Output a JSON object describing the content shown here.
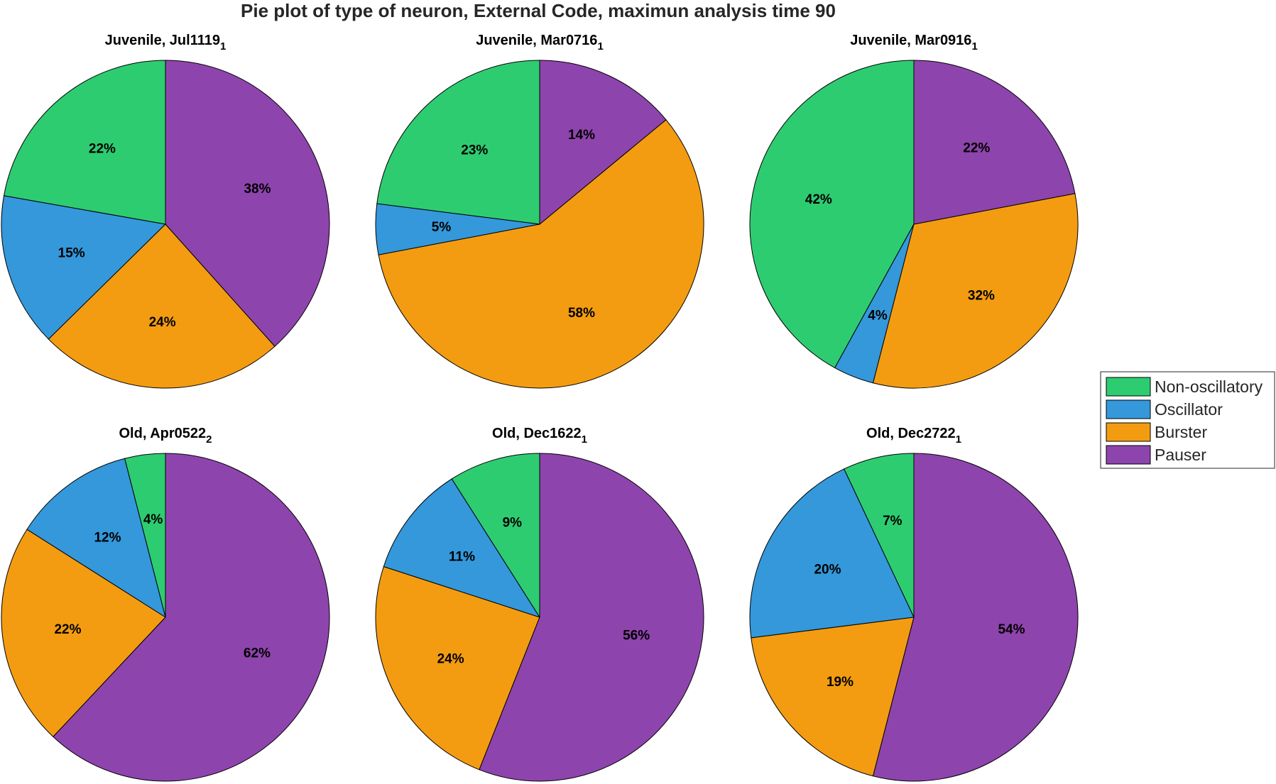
{
  "chart_data": {
    "type": "pie",
    "title": "Pie plot of type of neuron, External Code, maximun analysis time 90",
    "legend": {
      "placement": "right",
      "entries": [
        "Non-oscillatory",
        "Oscillator",
        "Burster",
        "Pauser"
      ]
    },
    "colors": [
      "#2ecc71",
      "#3498db",
      "#f39c12",
      "#8e44ad"
    ],
    "pies": [
      {
        "title": "Juvenile, Jul1119",
        "subscript": "1",
        "values": [
          22,
          15,
          24,
          38
        ],
        "labels": [
          "22%",
          "15%",
          "24%",
          "38%"
        ]
      },
      {
        "title": "Juvenile, Mar0716",
        "subscript": "1",
        "values": [
          23,
          5,
          58,
          14
        ],
        "labels": [
          "23%",
          "5%",
          "58%",
          "14%"
        ]
      },
      {
        "title": "Juvenile, Mar0916",
        "subscript": "1",
        "values": [
          42,
          4,
          32,
          22
        ],
        "labels": [
          "42%",
          "4%",
          "32%",
          "22%"
        ]
      },
      {
        "title": "Old, Apr0522",
        "subscript": "2",
        "values": [
          4,
          12,
          22,
          62
        ],
        "labels": [
          "4%",
          "12%",
          "22%",
          "62%"
        ]
      },
      {
        "title": "Old, Dec1622",
        "subscript": "1",
        "values": [
          9,
          11,
          24,
          56
        ],
        "labels": [
          "9%",
          "11%",
          "24%",
          "56%"
        ]
      },
      {
        "title": "Old, Dec2722",
        "subscript": "1",
        "values": [
          7,
          20,
          19,
          54
        ],
        "labels": [
          "7%",
          "20%",
          "19%",
          "54%"
        ]
      }
    ]
  }
}
